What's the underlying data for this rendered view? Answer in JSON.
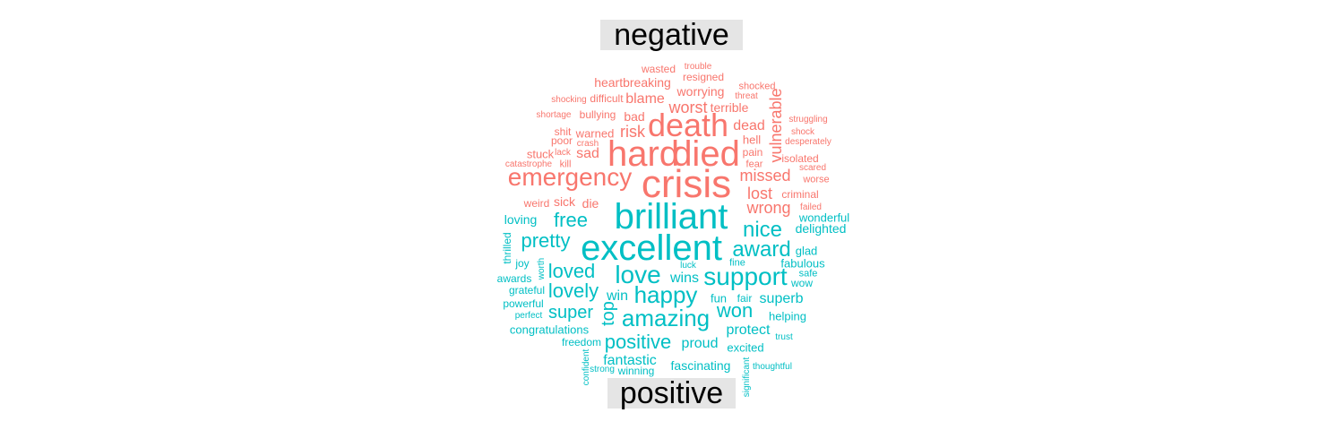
{
  "chart_data": {
    "type": "wordcloud",
    "groups": [
      {
        "name": "negative",
        "color": "#F8766D",
        "words": [
          [
            "crisis",
            44
          ],
          [
            "died",
            40
          ],
          [
            "hard",
            40
          ],
          [
            "death",
            36
          ],
          [
            "emergency",
            28
          ],
          [
            "missed",
            18
          ],
          [
            "risk",
            18
          ],
          [
            "worst",
            18
          ],
          [
            "wrong",
            18
          ],
          [
            "lost",
            18
          ],
          [
            "vulnerable",
            18
          ],
          [
            "sad",
            16
          ],
          [
            "dead",
            16
          ],
          [
            "blame",
            16
          ],
          [
            "worrying",
            14
          ],
          [
            "heartbreaking",
            14
          ],
          [
            "sick",
            14
          ],
          [
            "die",
            14
          ],
          [
            "bad",
            14
          ],
          [
            "terrible",
            14
          ],
          [
            "hell",
            13
          ],
          [
            "warned",
            13
          ],
          [
            "stuck",
            13
          ],
          [
            "wasted",
            12
          ],
          [
            "resigned",
            12
          ],
          [
            "bullying",
            12
          ],
          [
            "isolated",
            12
          ],
          [
            "criminal",
            12
          ],
          [
            "difficult",
            12
          ],
          [
            "pain",
            12
          ],
          [
            "shit",
            12
          ],
          [
            "weird",
            12
          ],
          [
            "poor",
            12
          ],
          [
            "worse",
            11
          ],
          [
            "kill",
            11
          ],
          [
            "fear",
            11
          ],
          [
            "shocked",
            11
          ],
          [
            "trouble",
            10
          ],
          [
            "threat",
            10
          ],
          [
            "shocking",
            10
          ],
          [
            "shortage",
            10
          ],
          [
            "struggling",
            10
          ],
          [
            "shock",
            10
          ],
          [
            "desperately",
            10
          ],
          [
            "crash",
            10
          ],
          [
            "lack",
            10
          ],
          [
            "catastrophe",
            10
          ],
          [
            "scared",
            10
          ],
          [
            "failed",
            10
          ]
        ]
      },
      {
        "name": "positive",
        "color": "#00BFC4",
        "words": [
          [
            "excellent",
            40
          ],
          [
            "brilliant",
            40
          ],
          [
            "support",
            28
          ],
          [
            "love",
            28
          ],
          [
            "amazing",
            26
          ],
          [
            "happy",
            26
          ],
          [
            "nice",
            24
          ],
          [
            "award",
            24
          ],
          [
            "free",
            22
          ],
          [
            "pretty",
            22
          ],
          [
            "loved",
            22
          ],
          [
            "lovely",
            22
          ],
          [
            "won",
            22
          ],
          [
            "positive",
            22
          ],
          [
            "super",
            20
          ],
          [
            "top",
            20
          ],
          [
            "superb",
            16
          ],
          [
            "fantastic",
            16
          ],
          [
            "proud",
            16
          ],
          [
            "protect",
            16
          ],
          [
            "wins",
            16
          ],
          [
            "win",
            16
          ],
          [
            "fascinating",
            14
          ],
          [
            "loving",
            14
          ],
          [
            "delighted",
            14
          ],
          [
            "wonderful",
            13
          ],
          [
            "fabulous",
            13
          ],
          [
            "helping",
            13
          ],
          [
            "congratulations",
            13
          ],
          [
            "fun",
            13
          ],
          [
            "glad",
            13
          ],
          [
            "wow",
            12
          ],
          [
            "excited",
            13
          ],
          [
            "joy",
            12
          ],
          [
            "thrilled",
            12
          ],
          [
            "grateful",
            12
          ],
          [
            "awards",
            12
          ],
          [
            "powerful",
            12
          ],
          [
            "fair",
            12
          ],
          [
            "freedom",
            12
          ],
          [
            "winning",
            12
          ],
          [
            "fine",
            11
          ],
          [
            "safe",
            11
          ],
          [
            "luck",
            10
          ],
          [
            "worth",
            10
          ],
          [
            "perfect",
            10
          ],
          [
            "trust",
            10
          ],
          [
            "strong",
            10
          ],
          [
            "confident",
            10
          ],
          [
            "significant",
            10
          ],
          [
            "thoughtful",
            10
          ]
        ]
      }
    ]
  }
}
